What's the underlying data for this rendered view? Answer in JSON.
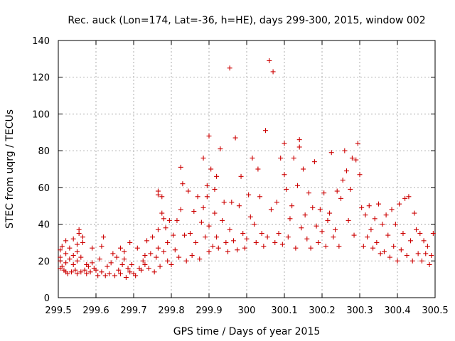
{
  "chart_data": {
    "type": "scatter",
    "title": "Rec. auck (Lon=174, Lat=-36, h=HE), days 299-300, 2015, window 002",
    "xlabel": "GPS time / Days of year 2015",
    "ylabel": "STEC from uqrg / TECUs",
    "xlim": [
      299.5,
      300.5
    ],
    "ylim": [
      0,
      140
    ],
    "xticks": [
      299.5,
      299.6,
      299.7,
      299.8,
      299.9,
      300,
      300.1,
      300.2,
      300.3,
      300.4,
      300.5
    ],
    "xtick_labels": [
      "299.5",
      "299.6",
      "299.7",
      "299.8",
      "299.9",
      "300",
      "300.1",
      "300.2",
      "300.3",
      "300.4",
      "300.5"
    ],
    "yticks": [
      0,
      20,
      40,
      60,
      80,
      100,
      120,
      140
    ],
    "ytick_labels": [
      "0",
      "20",
      "40",
      "60",
      "80",
      "100",
      "120",
      "140"
    ],
    "grid": true,
    "marker": "+",
    "color": "#cc0000",
    "series": [
      {
        "name": "STEC",
        "points": [
          [
            299.505,
            16
          ],
          [
            299.505,
            20
          ],
          [
            299.505,
            22
          ],
          [
            299.505,
            26
          ],
          [
            299.51,
            17
          ],
          [
            299.51,
            28
          ],
          [
            299.515,
            15
          ],
          [
            299.52,
            14
          ],
          [
            299.52,
            19
          ],
          [
            299.52,
            24
          ],
          [
            299.52,
            31
          ],
          [
            299.525,
            13
          ],
          [
            299.53,
            21
          ],
          [
            299.53,
            27
          ],
          [
            299.535,
            14
          ],
          [
            299.54,
            18
          ],
          [
            299.54,
            23
          ],
          [
            299.54,
            32
          ],
          [
            299.545,
            15
          ],
          [
            299.55,
            13
          ],
          [
            299.55,
            20
          ],
          [
            299.55,
            25
          ],
          [
            299.55,
            29
          ],
          [
            299.555,
            35
          ],
          [
            299.555,
            37
          ],
          [
            299.56,
            14
          ],
          [
            299.56,
            22
          ],
          [
            299.565,
            30
          ],
          [
            299.565,
            33
          ],
          [
            299.57,
            15
          ],
          [
            299.575,
            13
          ],
          [
            299.575,
            18
          ],
          [
            299.58,
            17
          ],
          [
            299.585,
            14
          ],
          [
            299.59,
            19
          ],
          [
            299.59,
            27
          ],
          [
            299.595,
            16
          ],
          [
            299.6,
            15
          ],
          [
            299.605,
            12
          ],
          [
            299.61,
            21
          ],
          [
            299.615,
            14
          ],
          [
            299.615,
            28
          ],
          [
            299.62,
            33
          ],
          [
            299.625,
            12
          ],
          [
            299.63,
            17
          ],
          [
            299.635,
            13
          ],
          [
            299.64,
            19
          ],
          [
            299.645,
            24
          ],
          [
            299.65,
            12
          ],
          [
            299.655,
            22
          ],
          [
            299.66,
            15
          ],
          [
            299.665,
            13
          ],
          [
            299.665,
            27
          ],
          [
            299.67,
            18
          ],
          [
            299.675,
            21
          ],
          [
            299.675,
            25
          ],
          [
            299.68,
            11
          ],
          [
            299.685,
            16
          ],
          [
            299.69,
            14
          ],
          [
            299.69,
            30
          ],
          [
            299.695,
            18
          ],
          [
            299.7,
            13
          ],
          [
            299.705,
            12
          ],
          [
            299.71,
            27
          ],
          [
            299.715,
            16
          ],
          [
            299.72,
            15
          ],
          [
            299.725,
            20
          ],
          [
            299.73,
            18
          ],
          [
            299.73,
            23
          ],
          [
            299.735,
            31
          ],
          [
            299.74,
            16
          ],
          [
            299.745,
            24
          ],
          [
            299.75,
            33
          ],
          [
            299.755,
            14
          ],
          [
            299.76,
            22
          ],
          [
            299.765,
            27
          ],
          [
            299.765,
            37
          ],
          [
            299.765,
            56
          ],
          [
            299.765,
            58
          ],
          [
            299.77,
            17
          ],
          [
            299.775,
            46
          ],
          [
            299.775,
            55
          ],
          [
            299.78,
            43
          ],
          [
            299.78,
            25
          ],
          [
            299.785,
            38
          ],
          [
            299.79,
            20
          ],
          [
            299.79,
            30
          ],
          [
            299.795,
            42
          ],
          [
            299.8,
            18
          ],
          [
            299.805,
            34
          ],
          [
            299.81,
            26
          ],
          [
            299.815,
            42
          ],
          [
            299.82,
            22
          ],
          [
            299.825,
            48
          ],
          [
            299.825,
            71
          ],
          [
            299.83,
            62
          ],
          [
            299.835,
            34
          ],
          [
            299.84,
            20
          ],
          [
            299.845,
            58
          ],
          [
            299.85,
            35
          ],
          [
            299.855,
            23
          ],
          [
            299.86,
            47
          ],
          [
            299.865,
            30
          ],
          [
            299.87,
            55
          ],
          [
            299.875,
            21
          ],
          [
            299.88,
            41
          ],
          [
            299.885,
            76
          ],
          [
            299.885,
            49
          ],
          [
            299.89,
            33
          ],
          [
            299.895,
            55
          ],
          [
            299.895,
            61
          ],
          [
            299.9,
            25
          ],
          [
            299.9,
            39
          ],
          [
            299.9,
            88
          ],
          [
            299.905,
            70
          ],
          [
            299.91,
            28
          ],
          [
            299.915,
            46
          ],
          [
            299.915,
            59
          ],
          [
            299.92,
            33
          ],
          [
            299.92,
            66
          ],
          [
            299.925,
            27
          ],
          [
            299.93,
            81
          ],
          [
            299.935,
            42
          ],
          [
            299.94,
            52
          ],
          [
            299.945,
            30
          ],
          [
            299.95,
            25
          ],
          [
            299.955,
            37
          ],
          [
            299.955,
            125
          ],
          [
            299.96,
            52
          ],
          [
            299.965,
            31
          ],
          [
            299.97,
            87
          ],
          [
            299.975,
            26
          ],
          [
            299.98,
            50
          ],
          [
            299.985,
            66
          ],
          [
            299.99,
            35
          ],
          [
            299.995,
            27
          ],
          [
            300,
            32
          ],
          [
            300.005,
            56
          ],
          [
            300.01,
            44
          ],
          [
            300.015,
            76
          ],
          [
            300.02,
            40
          ],
          [
            300.025,
            30
          ],
          [
            300.03,
            70
          ],
          [
            300.035,
            55
          ],
          [
            300.04,
            35
          ],
          [
            300.045,
            28
          ],
          [
            300.05,
            91
          ],
          [
            300.055,
            33
          ],
          [
            300.06,
            129
          ],
          [
            300.065,
            48
          ],
          [
            300.07,
            123
          ],
          [
            300.075,
            30
          ],
          [
            300.08,
            52
          ],
          [
            300.085,
            35
          ],
          [
            300.09,
            76
          ],
          [
            300.095,
            29
          ],
          [
            300.1,
            84
          ],
          [
            300.1,
            67
          ],
          [
            300.105,
            59
          ],
          [
            300.11,
            33
          ],
          [
            300.115,
            43
          ],
          [
            300.12,
            50
          ],
          [
            300.125,
            76
          ],
          [
            300.13,
            27
          ],
          [
            300.135,
            61
          ],
          [
            300.14,
            86
          ],
          [
            300.14,
            82
          ],
          [
            300.145,
            38
          ],
          [
            300.15,
            70
          ],
          [
            300.155,
            45
          ],
          [
            300.16,
            32
          ],
          [
            300.165,
            57
          ],
          [
            300.17,
            27
          ],
          [
            300.175,
            49
          ],
          [
            300.18,
            74
          ],
          [
            300.185,
            39
          ],
          [
            300.19,
            30
          ],
          [
            300.195,
            48
          ],
          [
            300.2,
            36
          ],
          [
            300.205,
            57
          ],
          [
            300.21,
            28
          ],
          [
            300.215,
            42
          ],
          [
            300.22,
            46
          ],
          [
            300.225,
            79
          ],
          [
            300.23,
            33
          ],
          [
            300.235,
            37
          ],
          [
            300.24,
            58
          ],
          [
            300.245,
            28
          ],
          [
            300.25,
            54
          ],
          [
            300.255,
            64
          ],
          [
            300.26,
            80
          ],
          [
            300.265,
            69
          ],
          [
            300.27,
            42
          ],
          [
            300.275,
            59
          ],
          [
            300.28,
            76
          ],
          [
            300.285,
            34
          ],
          [
            300.29,
            75
          ],
          [
            300.295,
            84
          ],
          [
            300.3,
            67
          ],
          [
            300.305,
            49
          ],
          [
            300.31,
            28
          ],
          [
            300.315,
            45
          ],
          [
            300.32,
            33
          ],
          [
            300.325,
            50
          ],
          [
            300.33,
            37
          ],
          [
            300.335,
            27
          ],
          [
            300.34,
            43
          ],
          [
            300.345,
            30
          ],
          [
            300.35,
            51
          ],
          [
            300.355,
            24
          ],
          [
            300.36,
            40
          ],
          [
            300.365,
            25
          ],
          [
            300.37,
            45
          ],
          [
            300.375,
            34
          ],
          [
            300.38,
            22
          ],
          [
            300.385,
            48
          ],
          [
            300.39,
            28
          ],
          [
            300.395,
            40
          ],
          [
            300.4,
            20
          ],
          [
            300.405,
            51
          ],
          [
            300.41,
            26
          ],
          [
            300.415,
            35
          ],
          [
            300.42,
            54
          ],
          [
            300.425,
            23
          ],
          [
            300.43,
            55
          ],
          [
            300.435,
            31
          ],
          [
            300.44,
            20
          ],
          [
            300.445,
            46
          ],
          [
            300.45,
            37
          ],
          [
            300.455,
            24
          ],
          [
            300.46,
            35
          ],
          [
            300.465,
            20
          ],
          [
            300.47,
            31
          ],
          [
            300.475,
            24
          ],
          [
            300.48,
            28
          ],
          [
            300.485,
            18
          ],
          [
            300.49,
            23
          ],
          [
            300.495,
            35
          ]
        ]
      }
    ]
  }
}
